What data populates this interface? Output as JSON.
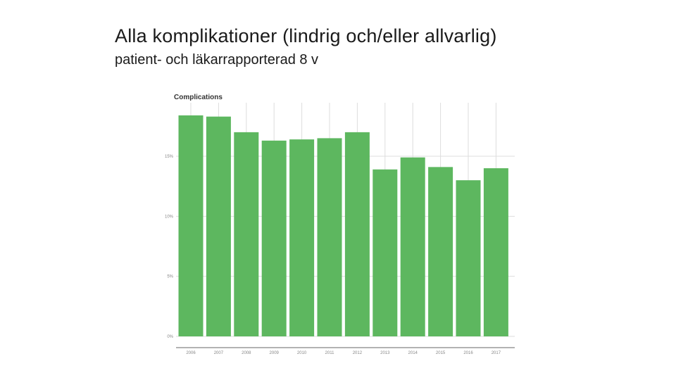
{
  "slide": {
    "title": "Alla komplikationer (lindrig och/eller allvarlig)",
    "subtitle": "patient- och läkarrapporterad 8 v"
  },
  "colors": {
    "bar": "#5db75f",
    "grid": "#dddddd",
    "axis": "#666666"
  },
  "chart_data": {
    "type": "bar",
    "title": "Complications",
    "categories": [
      "2006",
      "2007",
      "2008",
      "2009",
      "2010",
      "2011",
      "2012",
      "2013",
      "2014",
      "2015",
      "2016",
      "2017"
    ],
    "values": [
      18.4,
      18.3,
      17.0,
      16.3,
      16.4,
      16.5,
      17.0,
      13.9,
      14.9,
      14.1,
      13.0,
      14.0
    ],
    "yticks": [
      "0%",
      "5%",
      "10%",
      "15%"
    ],
    "ytick_values": [
      0,
      5,
      10,
      15
    ],
    "ylim": [
      0,
      19
    ],
    "xlabel": "",
    "ylabel": "",
    "grid": true
  }
}
